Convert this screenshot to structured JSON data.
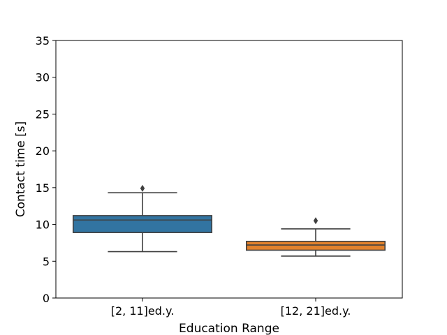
{
  "chart_data": {
    "type": "box",
    "title": "",
    "xlabel": "Education Range",
    "ylabel": "Contact time [s]",
    "ylim": [
      0,
      35
    ],
    "yticks": [
      0,
      5,
      10,
      15,
      20,
      25,
      30,
      35
    ],
    "grid": false,
    "categories": [
      "[2, 11]ed.y.",
      "[12, 21]ed.y."
    ],
    "boxes": [
      {
        "category": "[2, 11]ed.y.",
        "whisker_low": 6.3,
        "q1": 8.9,
        "median": 10.6,
        "q3": 11.2,
        "whisker_high": 14.3,
        "outliers": [
          14.9
        ],
        "color": "#3274a1"
      },
      {
        "category": "[12, 21]ed.y.",
        "whisker_low": 5.7,
        "q1": 6.5,
        "median": 7.2,
        "q3": 7.7,
        "whisker_high": 9.4,
        "outliers": [
          10.5
        ],
        "color": "#e1812c"
      }
    ]
  }
}
